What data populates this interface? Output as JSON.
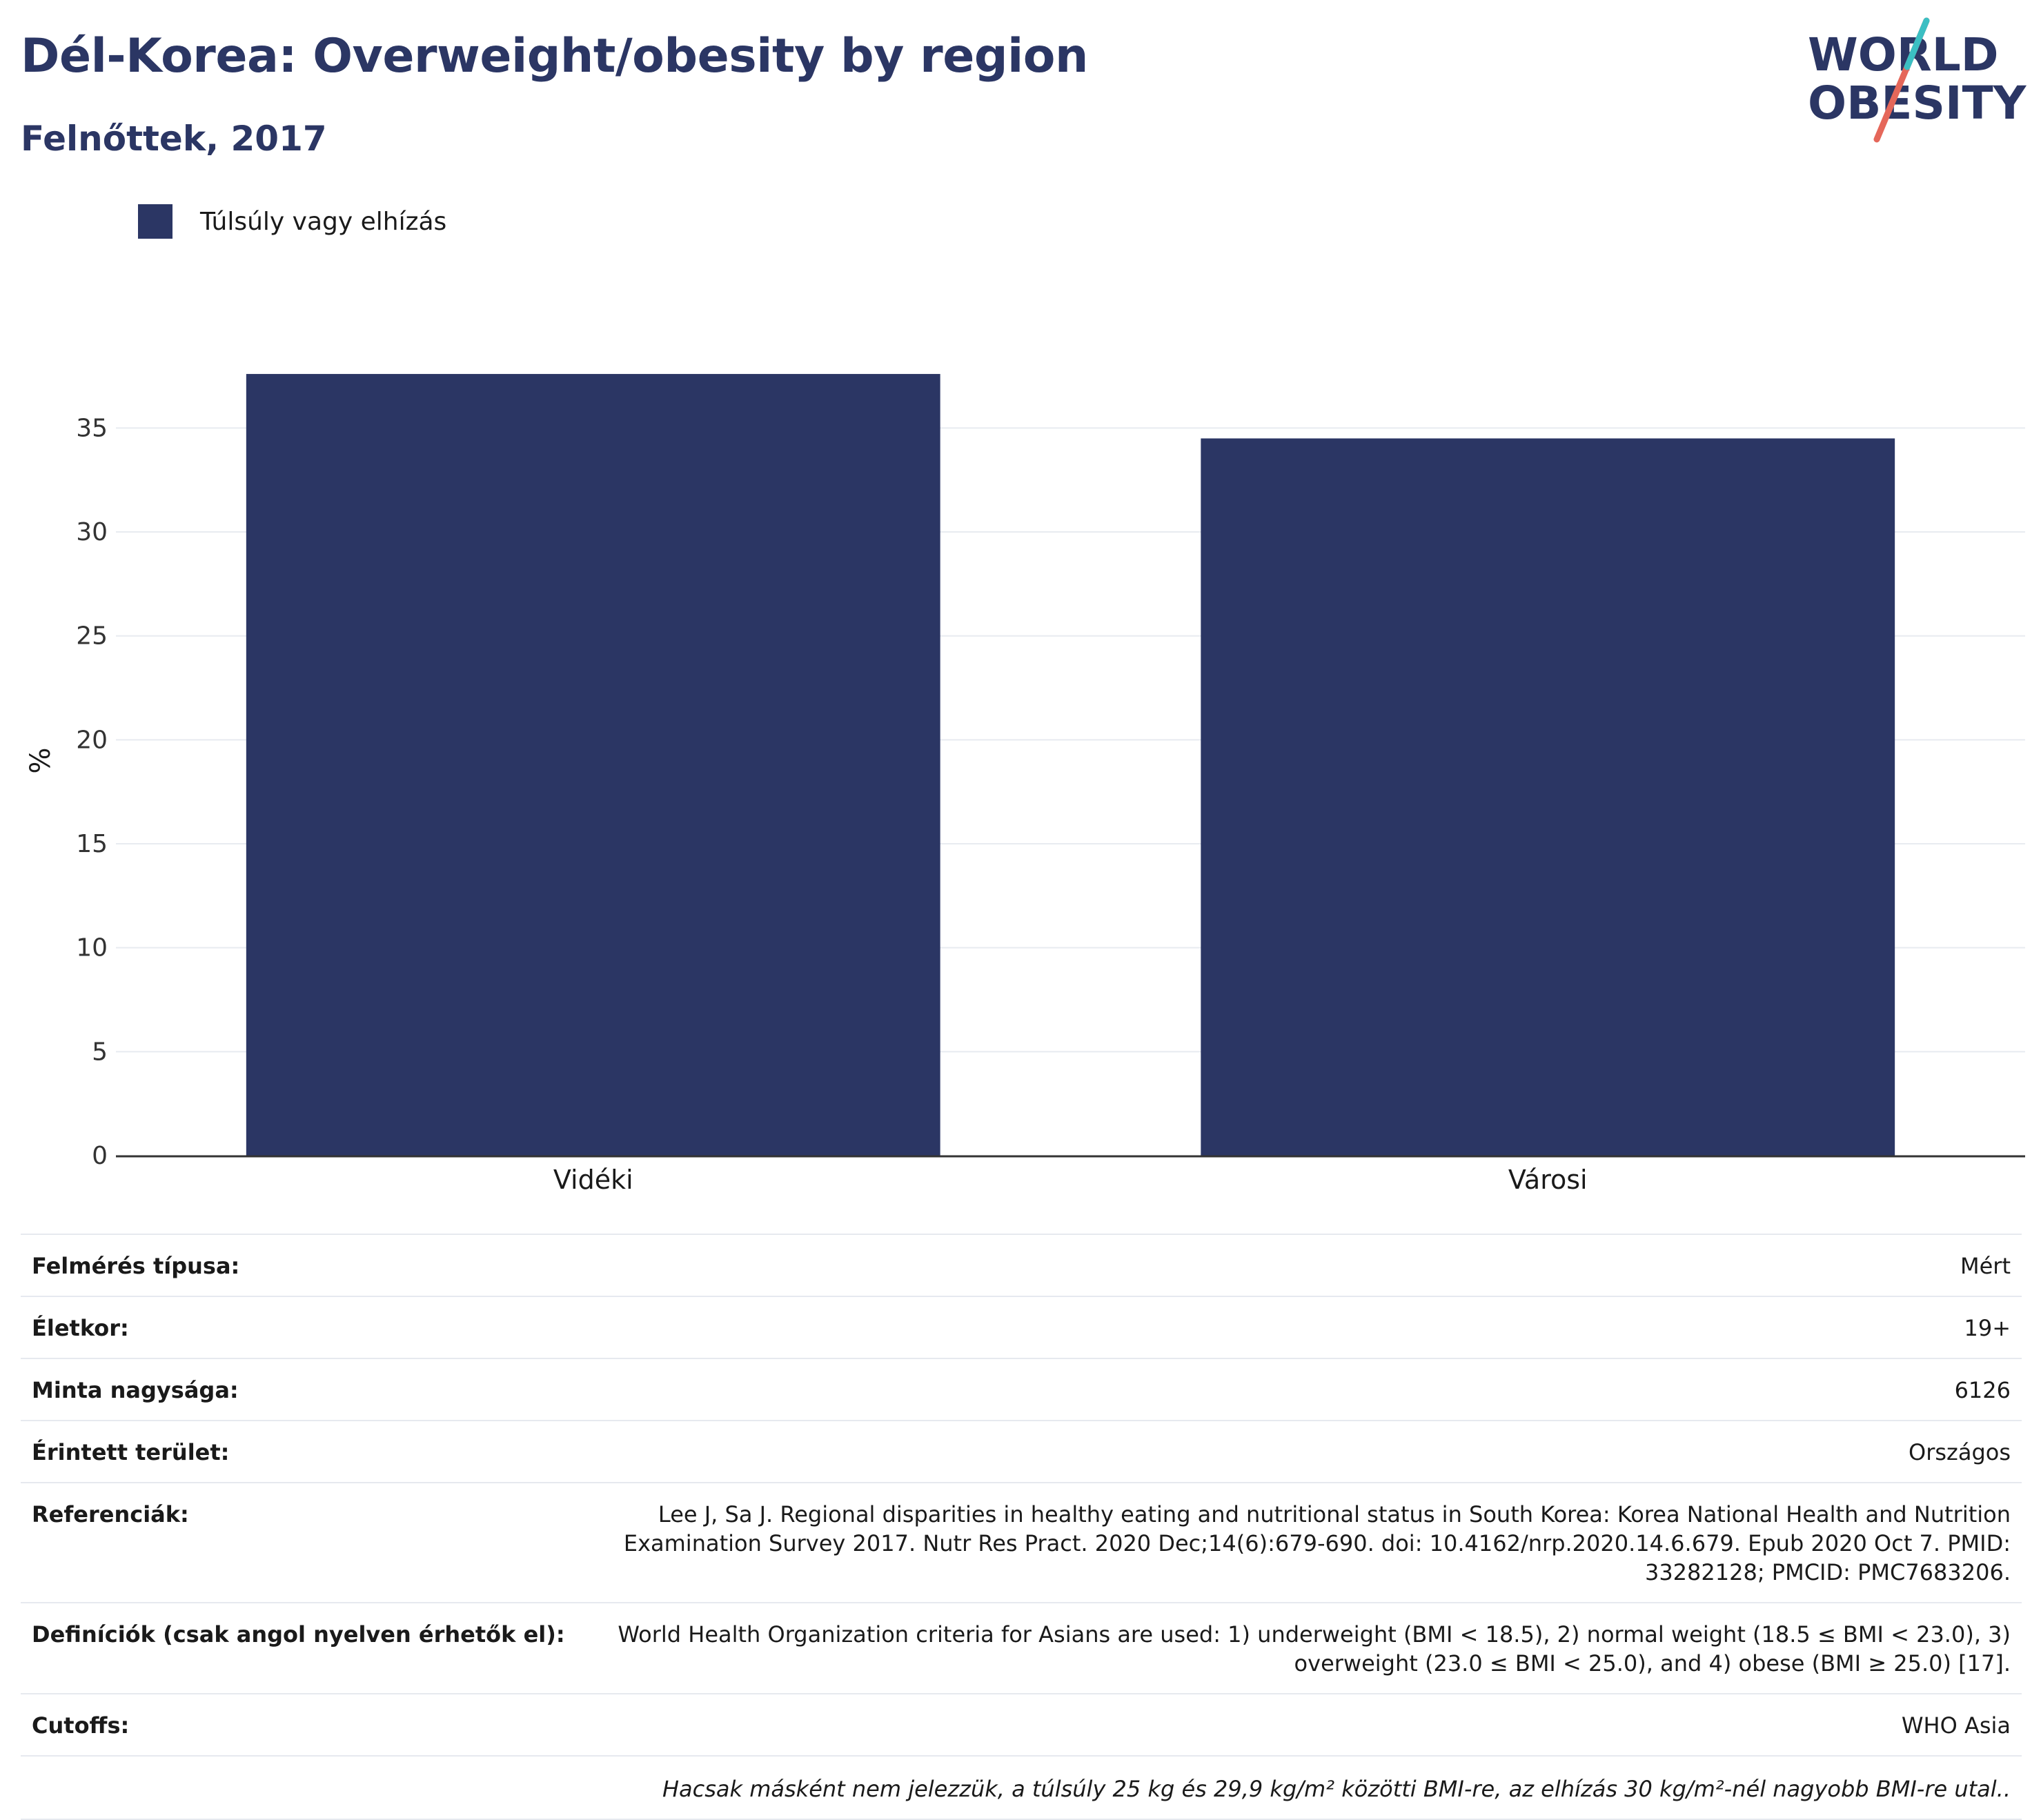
{
  "header": {
    "title": "Dél-Korea: Overweight/obesity by region",
    "subtitle": "Felnőttek, 2017"
  },
  "logo": {
    "line1": "WORLD",
    "line2": "OBESITY",
    "colors": {
      "text": "#2b3664",
      "accent_red": "#e5675a",
      "accent_teal": "#3bbfc3"
    }
  },
  "legend": {
    "items": [
      {
        "label": "Túlsúly vagy elhízás",
        "color": "#2b3664"
      }
    ]
  },
  "chart_data": {
    "type": "bar",
    "categories": [
      "Vidéki",
      "Városi"
    ],
    "series": [
      {
        "name": "Túlsúly vagy elhízás",
        "values": [
          37.6,
          34.5
        ],
        "color": "#2b3664"
      }
    ],
    "title": "Dél-Korea: Overweight/obesity by region",
    "subtitle": "Felnőttek, 2017",
    "xlabel": "",
    "ylabel": "%",
    "ylim": [
      0,
      38
    ],
    "yticks": [
      0,
      5,
      10,
      15,
      20,
      25,
      30,
      35
    ],
    "grid": true,
    "legend_position": "top-left"
  },
  "info": {
    "rows": [
      {
        "label": "Felmérés típusa:",
        "value": "Mért"
      },
      {
        "label": "Életkor:",
        "value": "19+"
      },
      {
        "label": "Minta nagysága:",
        "value": "6126"
      },
      {
        "label": "Érintett terület:",
        "value": "Országos"
      },
      {
        "label": "Referenciák:",
        "value": "Lee J, Sa J. Regional disparities in healthy eating and nutritional status in South Korea: Korea National Health and Nutrition Examination Survey 2017. Nutr Res Pract. 2020 Dec;14(6):679-690. doi: 10.4162/nrp.2020.14.6.679. Epub 2020 Oct 7. PMID: 33282128; PMCID: PMC7683206."
      },
      {
        "label": "Definíciók (csak angol nyelven érhetők el):",
        "value": "World Health Organization criteria for Asians are used: 1) underweight (BMI < 18.5), 2) normal weight (18.5 ≤ BMI < 23.0), 3) overweight (23.0 ≤ BMI < 25.0), and 4) obese (BMI ≥ 25.0) [17]."
      },
      {
        "label": "Cutoffs:",
        "value": "WHO Asia"
      }
    ],
    "note": "Hacsak másként nem jelezzük, a túlsúly 25 kg és 29,9 kg/m² közötti BMI-re, az elhízás 30 kg/m²-nél nagyobb BMI-re utal.."
  }
}
